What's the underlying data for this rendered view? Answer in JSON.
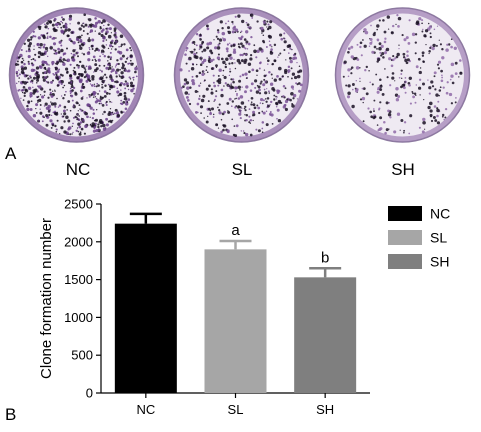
{
  "panel_a": {
    "letter": "A",
    "dishes": [
      {
        "label": "NC",
        "density": 0.95,
        "color": "#6a3f8a"
      },
      {
        "label": "SL",
        "density": 0.6,
        "color": "#7a5296"
      },
      {
        "label": "SH",
        "density": 0.35,
        "color": "#8f6aa8"
      }
    ]
  },
  "panel_b": {
    "letter": "B"
  },
  "chart_data": {
    "type": "bar",
    "categories": [
      "NC",
      "SL",
      "SH"
    ],
    "values": [
      2240,
      1900,
      1530
    ],
    "errors": [
      130,
      110,
      120
    ],
    "significance": [
      "",
      "a",
      "b"
    ],
    "colors": [
      "#000000",
      "#a6a6a6",
      "#7f7f7f"
    ],
    "title": "",
    "xlabel": "",
    "ylabel": "Clone formation number",
    "ylim": [
      0,
      2500
    ],
    "yticks": [
      0,
      500,
      1000,
      1500,
      2000,
      2500
    ],
    "legend": {
      "placement": "top-right",
      "entries": [
        "NC",
        "SL",
        "SH"
      ]
    },
    "grid": false
  }
}
